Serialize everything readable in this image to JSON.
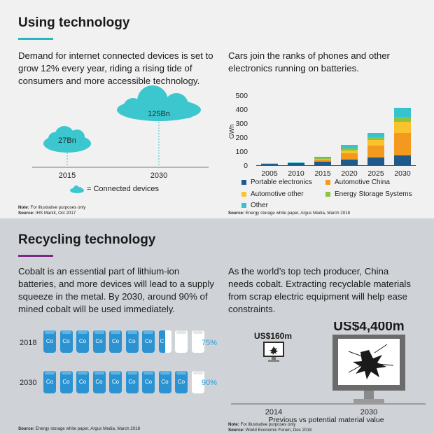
{
  "colors": {
    "accent_top": "#2bb5c2",
    "accent_bottom": "#7b2a86",
    "cloud": "#3cc7cf",
    "battery_blue": "#2b93d1",
    "battery_empty": "#ffffff",
    "portable": "#1f5a8a",
    "auto_china": "#f39a1e",
    "auto_other": "#f9c22e",
    "ess": "#8dc43f",
    "other": "#36c2cf"
  },
  "top": {
    "title": "Using technology",
    "left_text": "Demand for internet connected devices is set to grow 12% every year, riding a rising tide of consumers and more accessible technology.",
    "clouds": [
      {
        "year": "2015",
        "label": "27Bn"
      },
      {
        "year": "2030",
        "label": "125Bn"
      }
    ],
    "cloud_legend": "= Connected devices",
    "left_note_label": "Note:",
    "left_note": "For illustrative purposes only",
    "left_source_label": "Source:",
    "left_source": "IHS Markit, Oct 2017",
    "right_text": "Cars join the ranks of phones and other electronics running on batteries.",
    "right_source_label": "Source:",
    "right_source": "Energy storage white paper, Argus Media, March 2018"
  },
  "chart_data": {
    "type": "bar",
    "stacked": true,
    "categories": [
      "2005",
      "2010",
      "2015",
      "2020",
      "2025",
      "2030"
    ],
    "ylabel": "GWh",
    "ylim": [
      0,
      500
    ],
    "yticks": [
      "0",
      "100",
      "200",
      "300",
      "400",
      "500"
    ],
    "series": [
      {
        "name": "Portable electronics",
        "values": [
          10,
          15,
          25,
          40,
          55,
          70
        ]
      },
      {
        "name": "Automotive China",
        "values": [
          0,
          0,
          15,
          45,
          85,
          160
        ]
      },
      {
        "name": "Automotive other",
        "values": [
          0,
          0,
          5,
          20,
          40,
          80
        ]
      },
      {
        "name": "Energy Storage Systems",
        "values": [
          0,
          0,
          5,
          15,
          20,
          35
        ]
      },
      {
        "name": "Other",
        "values": [
          2,
          5,
          10,
          25,
          30,
          65
        ]
      }
    ]
  },
  "bottom": {
    "title": "Recycling technology",
    "left_text": "Cobalt is an essential part of lithium-ion batteries, and more devices will lead to a supply squeeze in the metal. By 2030, around 90% of mined cobalt will be used immediately.",
    "cobalt_symbol": "Co",
    "rows": [
      {
        "year": "2018",
        "pct": "75%",
        "filled": 7.5
      },
      {
        "year": "2030",
        "pct": "90%",
        "filled": 9
      }
    ],
    "left_source_label": "Source:",
    "left_source": "Energy storage white paper, Argus Media, March 2018",
    "right_text": "As the world’s top tech producer, China needs cobalt. Extracting recyclable materials from scrap electric equipment will help ease constraints.",
    "values": [
      {
        "year": "2014",
        "label": "US$160m"
      },
      {
        "year": "2030",
        "label": "US$4,400m"
      }
    ],
    "caption": "Previous vs potential material value",
    "right_note_label": "Note:",
    "right_note": "For illustrative purposes only",
    "right_source_label": "Source:",
    "right_source": "World Economic Forum, Dec 2018"
  }
}
